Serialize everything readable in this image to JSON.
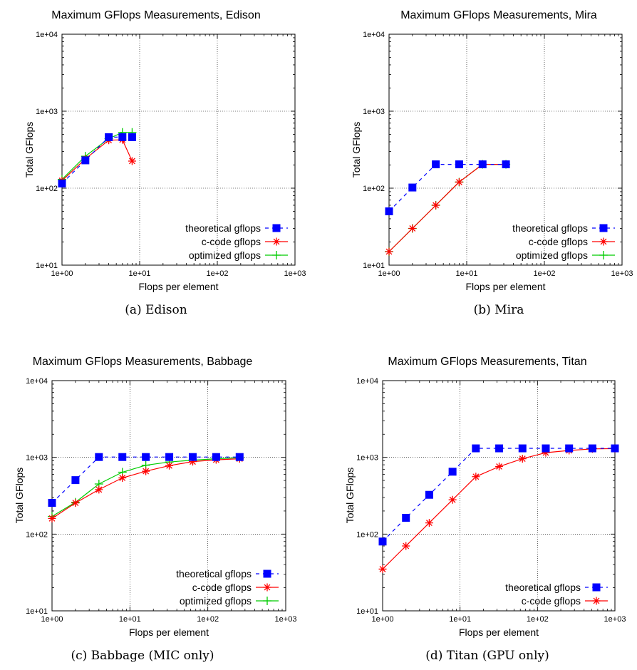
{
  "figure": {
    "panels": [
      {
        "caption": "(a) Edison"
      },
      {
        "caption": "(b) Mira"
      },
      {
        "caption": "(c) Babbage (MIC only)"
      },
      {
        "caption": "(d) Titan (GPU only)"
      }
    ]
  },
  "colors": {
    "theoretical": "#0000ff",
    "c_code": "#ff0000",
    "optimized": "#00cc00",
    "grid": "#000000"
  },
  "chart_data": [
    {
      "type": "line",
      "title": "Maximum GFlops Measurements, Edison",
      "xlabel": "Flops per element",
      "ylabel": "Total GFlops",
      "xscale": "log",
      "yscale": "log",
      "xlim": [
        1,
        1000
      ],
      "ylim": [
        10,
        10000
      ],
      "xticks": [
        "1e+00",
        "1e+01",
        "1e+02",
        "1e+03"
      ],
      "yticks": [
        "1e+01",
        "1e+02",
        "1e+03",
        "1e+04"
      ],
      "grid": true,
      "legend_position": "bottom-right",
      "series": [
        {
          "name": "theoretical gflops",
          "style": "dashed-square",
          "x": [
            1,
            2,
            4,
            6,
            8
          ],
          "y": [
            115,
            230,
            460,
            460,
            460
          ]
        },
        {
          "name": "c-code gflops",
          "style": "solid-star",
          "x": [
            1,
            2,
            4,
            6,
            8
          ],
          "y": [
            125,
            240,
            420,
            425,
            225
          ]
        },
        {
          "name": "optimized gflops",
          "style": "solid-plus",
          "x": [
            1,
            2,
            4,
            6,
            8
          ],
          "y": [
            130,
            260,
            440,
            530,
            530
          ]
        }
      ]
    },
    {
      "type": "line",
      "title": "Maximum GFlops Measurements, Mira",
      "xlabel": "Flops per element",
      "ylabel": "Total GFlops",
      "xscale": "log",
      "yscale": "log",
      "xlim": [
        1,
        1000
      ],
      "ylim": [
        10,
        10000
      ],
      "xticks": [
        "1e+00",
        "1e+01",
        "1e+02",
        "1e+03"
      ],
      "yticks": [
        "1e+01",
        "1e+02",
        "1e+03",
        "1e+04"
      ],
      "grid": true,
      "legend_position": "bottom-right",
      "series": [
        {
          "name": "theoretical gflops",
          "style": "dashed-square",
          "x": [
            1,
            2,
            4,
            8,
            16,
            32
          ],
          "y": [
            50,
            102,
            204,
            204,
            204,
            204
          ]
        },
        {
          "name": "c-code gflops",
          "style": "solid-star",
          "x": [
            1,
            2,
            4,
            8,
            16,
            32
          ],
          "y": [
            15,
            30,
            60,
            120,
            204,
            204
          ]
        },
        {
          "name": "optimized gflops",
          "style": "solid-plus",
          "x": [
            1,
            2,
            4,
            8,
            16,
            32
          ],
          "y": [
            15,
            30,
            60,
            120,
            204,
            204
          ]
        }
      ]
    },
    {
      "type": "line",
      "title": "Maximum GFlops Measurements, Babbage",
      "xlabel": "Flops per element",
      "ylabel": "Total GFlops",
      "xscale": "log",
      "yscale": "log",
      "xlim": [
        1,
        1000
      ],
      "ylim": [
        10,
        10000
      ],
      "xticks": [
        "1e+00",
        "1e+01",
        "1e+02",
        "1e+03"
      ],
      "yticks": [
        "1e+01",
        "1e+02",
        "1e+03",
        "1e+04"
      ],
      "grid": true,
      "legend_position": "bottom-right",
      "series": [
        {
          "name": "theoretical gflops",
          "style": "dashed-square",
          "x": [
            1,
            2,
            4,
            8,
            16,
            32,
            64,
            128,
            256
          ],
          "y": [
            255,
            505,
            1010,
            1010,
            1010,
            1010,
            1010,
            1010,
            1010
          ]
        },
        {
          "name": "c-code gflops",
          "style": "solid-star",
          "x": [
            1,
            2,
            4,
            8,
            16,
            32,
            64,
            128,
            256
          ],
          "y": [
            160,
            255,
            380,
            540,
            660,
            780,
            880,
            930,
            960
          ]
        },
        {
          "name": "optimized gflops",
          "style": "solid-plus",
          "x": [
            1,
            2,
            4,
            8,
            16,
            32,
            64,
            128,
            256
          ],
          "y": [
            170,
            260,
            450,
            640,
            790,
            870,
            920,
            960,
            990
          ]
        }
      ]
    },
    {
      "type": "line",
      "title": "Maximum GFlops Measurements, Titan",
      "xlabel": "Flops per element",
      "ylabel": "Total GFlops",
      "xscale": "log",
      "yscale": "log",
      "xlim": [
        1,
        1000
      ],
      "ylim": [
        10,
        10000
      ],
      "xticks": [
        "1e+00",
        "1e+01",
        "1e+02",
        "1e+03"
      ],
      "yticks": [
        "1e+01",
        "1e+02",
        "1e+03",
        "1e+04"
      ],
      "grid": true,
      "legend_position": "bottom-right",
      "series": [
        {
          "name": "theoretical gflops",
          "style": "dashed-square",
          "x": [
            1,
            2,
            4,
            8,
            16,
            32,
            64,
            128,
            256,
            512,
            1000
          ],
          "y": [
            80,
            163,
            325,
            650,
            1310,
            1310,
            1310,
            1310,
            1310,
            1310,
            1310
          ]
        },
        {
          "name": "c-code gflops",
          "style": "solid-star",
          "x": [
            1,
            2,
            4,
            8,
            16,
            32,
            64,
            128,
            256,
            512,
            1000
          ],
          "y": [
            35,
            70,
            140,
            280,
            560,
            760,
            960,
            1150,
            1230,
            1290,
            1300
          ]
        }
      ]
    }
  ]
}
